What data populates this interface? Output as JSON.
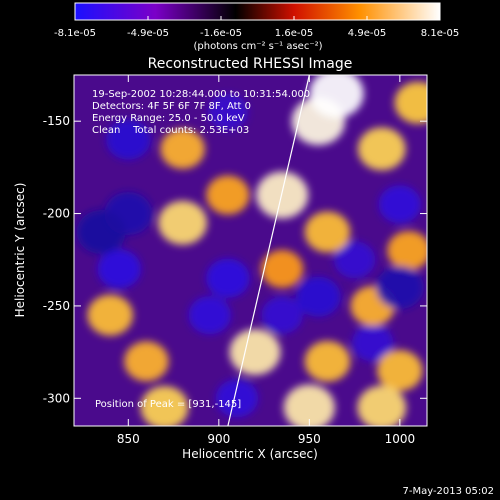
{
  "chart_data": {
    "type": "heatmap",
    "title": "Reconstructed RHESSI Image",
    "xlabel": "Heliocentric X (arcsec)",
    "ylabel": "Heliocentric Y (arcsec)",
    "xlim": [
      820,
      1015
    ],
    "ylim": [
      -315,
      -125
    ],
    "x_ticks": [
      850,
      900,
      950,
      1000
    ],
    "y_ticks": [
      -150,
      -200,
      -250,
      -300
    ],
    "colorbar": {
      "min": -8.1e-05,
      "max": 8.1e-05,
      "tick_labels": [
        "-8.1e-05",
        "-4.9e-05",
        "-1.6e-05",
        "1.6e-05",
        "4.9e-05",
        "8.1e-05"
      ],
      "unit": "(photons cm⁻² s⁻¹ asec⁻²)",
      "colors": [
        "#1a10ff",
        "#7b00c8",
        "#000000",
        "#d01000",
        "#ff9000",
        "#ffffff"
      ]
    },
    "annotations": [
      "19-Sep-2002 10:28:44.000 to 10:31:54.000",
      "Detectors: 4F 5F 6F 7F 8F, Att 0",
      "Energy Range: 25.0 - 50.0 keV",
      "Clean    Total counts: 2.53E+03",
      "Position of Peak = [931,-145]"
    ],
    "limb_line": {
      "x": [
        905,
        950
      ],
      "y": [
        -315,
        -125
      ]
    },
    "peak": {
      "x": 931,
      "y": -145
    },
    "blobs": [
      {
        "x": 965,
        "y": -135,
        "v": 1.0
      },
      {
        "x": 955,
        "y": -150,
        "v": 0.95
      },
      {
        "x": 935,
        "y": -190,
        "v": 0.9
      },
      {
        "x": 880,
        "y": -165,
        "v": 0.55
      },
      {
        "x": 880,
        "y": -205,
        "v": 0.75
      },
      {
        "x": 905,
        "y": -190,
        "v": 0.5
      },
      {
        "x": 990,
        "y": -165,
        "v": 0.7
      },
      {
        "x": 960,
        "y": -210,
        "v": 0.6
      },
      {
        "x": 935,
        "y": -230,
        "v": 0.45
      },
      {
        "x": 985,
        "y": -250,
        "v": 0.55
      },
      {
        "x": 1005,
        "y": -220,
        "v": 0.5
      },
      {
        "x": 840,
        "y": -255,
        "v": 0.6
      },
      {
        "x": 860,
        "y": -280,
        "v": 0.55
      },
      {
        "x": 920,
        "y": -275,
        "v": 0.85
      },
      {
        "x": 960,
        "y": -280,
        "v": 0.6
      },
      {
        "x": 1000,
        "y": -285,
        "v": 0.6
      },
      {
        "x": 870,
        "y": -305,
        "v": 0.7
      },
      {
        "x": 950,
        "y": -305,
        "v": 0.85
      },
      {
        "x": 990,
        "y": -305,
        "v": 0.75
      },
      {
        "x": 1010,
        "y": -140,
        "v": 0.65
      },
      {
        "x": 850,
        "y": -200,
        "v": -0.7
      },
      {
        "x": 835,
        "y": -210,
        "v": -0.75
      },
      {
        "x": 850,
        "y": -160,
        "v": -0.55
      },
      {
        "x": 845,
        "y": -230,
        "v": -0.5
      },
      {
        "x": 905,
        "y": -235,
        "v": -0.5
      },
      {
        "x": 955,
        "y": -245,
        "v": -0.55
      },
      {
        "x": 1000,
        "y": -195,
        "v": -0.45
      },
      {
        "x": 1000,
        "y": -240,
        "v": -0.7
      },
      {
        "x": 975,
        "y": -225,
        "v": -0.4
      },
      {
        "x": 895,
        "y": -255,
        "v": -0.45
      },
      {
        "x": 935,
        "y": -255,
        "v": -0.4
      },
      {
        "x": 905,
        "y": -145,
        "v": -0.35
      },
      {
        "x": 910,
        "y": -300,
        "v": -0.45
      },
      {
        "x": 985,
        "y": -270,
        "v": -0.4
      }
    ]
  },
  "footer": {
    "date": "7-May-2013 05:02"
  }
}
